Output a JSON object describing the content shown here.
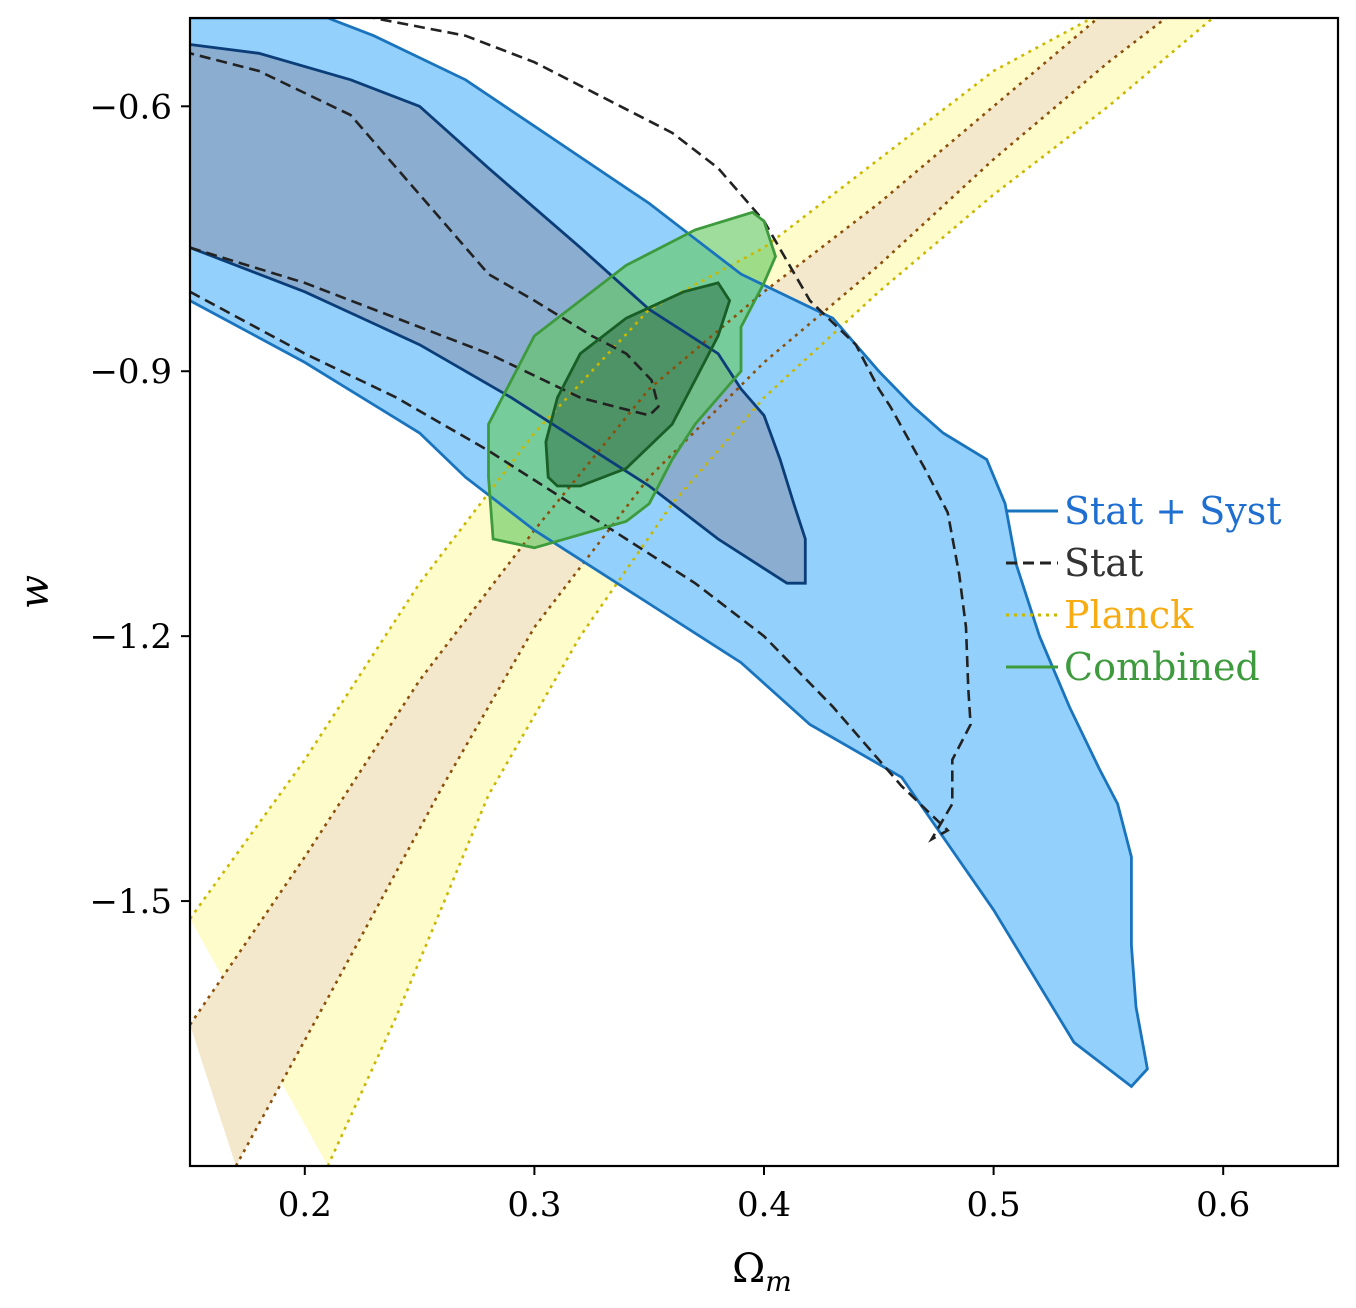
{
  "chart_data": {
    "type": "contour",
    "xlabel": "Ω",
    "xlabel_sub": "m",
    "ylabel": "w",
    "xlim": [
      0.15,
      0.65
    ],
    "ylim": [
      -1.8,
      -0.5
    ],
    "xticks": [
      0.2,
      0.3,
      0.4,
      0.5,
      0.6
    ],
    "xtick_labels": [
      "0.2",
      "0.3",
      "0.4",
      "0.5",
      "0.6"
    ],
    "yticks": [
      -0.6,
      -0.9,
      -1.2,
      -1.5
    ],
    "ytick_labels": [
      "−0.6",
      "−0.9",
      "−1.2",
      "−1.5"
    ],
    "legend_position": "right",
    "series": [
      {
        "name": "Stat + Syst",
        "label_color": "#1f6fd1",
        "line_color": "#1a74bd",
        "line_style": "solid",
        "fill_outer": "#93d1fc",
        "fill_inner": "#8aadd0",
        "inner_line_color": "#0b3e78",
        "contours": [
          {
            "level": "2sigma",
            "points": [
              [
                0.15,
                -0.82
              ],
              [
                0.2,
                -0.89
              ],
              [
                0.25,
                -0.97
              ],
              [
                0.27,
                -1.02
              ],
              [
                0.3,
                -1.08
              ],
              [
                0.33,
                -1.13
              ],
              [
                0.36,
                -1.18
              ],
              [
                0.39,
                -1.23
              ],
              [
                0.42,
                -1.3
              ],
              [
                0.46,
                -1.36
              ],
              [
                0.5,
                -1.51
              ],
              [
                0.535,
                -1.66
              ],
              [
                0.56,
                -1.71
              ],
              [
                0.567,
                -1.69
              ],
              [
                0.562,
                -1.62
              ],
              [
                0.56,
                -1.55
              ],
              [
                0.56,
                -1.45
              ],
              [
                0.554,
                -1.39
              ],
              [
                0.546,
                -1.35
              ],
              [
                0.533,
                -1.28
              ],
              [
                0.52,
                -1.2
              ],
              [
                0.51,
                -1.12
              ],
              [
                0.505,
                -1.05
              ],
              [
                0.497,
                -1.0
              ],
              [
                0.478,
                -0.97
              ],
              [
                0.465,
                -0.94
              ],
              [
                0.45,
                -0.9
              ],
              [
                0.43,
                -0.84
              ],
              [
                0.39,
                -0.79
              ],
              [
                0.37,
                -0.75
              ],
              [
                0.35,
                -0.71
              ],
              [
                0.31,
                -0.64
              ],
              [
                0.27,
                -0.57
              ],
              [
                0.23,
                -0.52
              ],
              [
                0.21,
                -0.5
              ],
              [
                0.15,
                -0.5
              ]
            ]
          },
          {
            "level": "1sigma",
            "points": [
              [
                0.15,
                -0.76
              ],
              [
                0.2,
                -0.81
              ],
              [
                0.25,
                -0.87
              ],
              [
                0.29,
                -0.93
              ],
              [
                0.32,
                -0.98
              ],
              [
                0.35,
                -1.03
              ],
              [
                0.38,
                -1.09
              ],
              [
                0.41,
                -1.14
              ],
              [
                0.418,
                -1.14
              ],
              [
                0.418,
                -1.09
              ],
              [
                0.413,
                -1.05
              ],
              [
                0.407,
                -1.0
              ],
              [
                0.4,
                -0.95
              ],
              [
                0.39,
                -0.92
              ],
              [
                0.38,
                -0.88
              ],
              [
                0.35,
                -0.83
              ],
              [
                0.32,
                -0.76
              ],
              [
                0.28,
                -0.67
              ],
              [
                0.25,
                -0.6
              ],
              [
                0.22,
                -0.57
              ],
              [
                0.18,
                -0.54
              ],
              [
                0.15,
                -0.53
              ]
            ]
          }
        ]
      },
      {
        "name": "Stat",
        "label_color": "#333333",
        "line_color": "#222222",
        "line_style": "dashed",
        "contours": [
          {
            "level": "2sigma",
            "points": [
              [
                0.15,
                -0.81
              ],
              [
                0.2,
                -0.88
              ],
              [
                0.24,
                -0.93
              ],
              [
                0.28,
                -0.99
              ],
              [
                0.31,
                -1.04
              ],
              [
                0.34,
                -1.09
              ],
              [
                0.37,
                -1.14
              ],
              [
                0.4,
                -1.2
              ],
              [
                0.43,
                -1.28
              ],
              [
                0.46,
                -1.37
              ],
              [
                0.48,
                -1.42
              ],
              [
                0.473,
                -1.43
              ],
              [
                0.482,
                -1.39
              ],
              [
                0.482,
                -1.34
              ],
              [
                0.49,
                -1.3
              ],
              [
                0.489,
                -1.26
              ],
              [
                0.488,
                -1.19
              ],
              [
                0.485,
                -1.13
              ],
              [
                0.48,
                -1.06
              ],
              [
                0.47,
                -1.01
              ],
              [
                0.455,
                -0.94
              ],
              [
                0.45,
                -0.92
              ],
              [
                0.44,
                -0.87
              ],
              [
                0.42,
                -0.82
              ],
              [
                0.4,
                -0.73
              ],
              [
                0.38,
                -0.67
              ],
              [
                0.36,
                -0.63
              ],
              [
                0.33,
                -0.59
              ],
              [
                0.3,
                -0.55
              ],
              [
                0.27,
                -0.52
              ],
              [
                0.23,
                -0.5
              ]
            ]
          },
          {
            "level": "1sigma",
            "points": [
              [
                0.15,
                -0.76
              ],
              [
                0.2,
                -0.8
              ],
              [
                0.24,
                -0.84
              ],
              [
                0.28,
                -0.88
              ],
              [
                0.32,
                -0.93
              ],
              [
                0.35,
                -0.95
              ],
              [
                0.354,
                -0.94
              ],
              [
                0.351,
                -0.91
              ],
              [
                0.34,
                -0.88
              ],
              [
                0.325,
                -0.86
              ],
              [
                0.3,
                -0.82
              ],
              [
                0.28,
                -0.79
              ],
              [
                0.26,
                -0.73
              ],
              [
                0.24,
                -0.67
              ],
              [
                0.22,
                -0.61
              ],
              [
                0.18,
                -0.56
              ],
              [
                0.15,
                -0.54
              ]
            ]
          }
        ]
      },
      {
        "name": "Planck",
        "label_color": "#f7ac14",
        "line_color": "#c9b800",
        "inner_line_color": "#8b4f0a",
        "line_style": "dotted",
        "fill_outer": "#fffccb",
        "fill_inner": "#f3e8cb",
        "bands": [
          {
            "level": "outer_upper",
            "points": [
              [
                0.15,
                -1.52
              ],
              [
                0.2,
                -1.34
              ],
              [
                0.25,
                -1.14
              ],
              [
                0.3,
                -0.97
              ],
              [
                0.35,
                -0.83
              ],
              [
                0.4,
                -0.76
              ],
              [
                0.45,
                -0.66
              ],
              [
                0.5,
                -0.56
              ],
              [
                0.55,
                -0.49
              ]
            ]
          },
          {
            "level": "inner_upper",
            "points": [
              [
                0.15,
                -1.64
              ],
              [
                0.2,
                -1.45
              ],
              [
                0.25,
                -1.25
              ],
              [
                0.3,
                -1.08
              ],
              [
                0.35,
                -0.92
              ],
              [
                0.4,
                -0.81
              ],
              [
                0.45,
                -0.71
              ],
              [
                0.5,
                -0.6
              ],
              [
                0.55,
                -0.49
              ]
            ]
          },
          {
            "level": "inner_lower",
            "points": [
              [
                0.17,
                -1.8
              ],
              [
                0.21,
                -1.61
              ],
              [
                0.26,
                -1.37
              ],
              [
                0.3,
                -1.19
              ],
              [
                0.35,
                -1.02
              ],
              [
                0.4,
                -0.89
              ],
              [
                0.45,
                -0.78
              ],
              [
                0.5,
                -0.66
              ],
              [
                0.55,
                -0.55
              ],
              [
                0.58,
                -0.49
              ]
            ]
          },
          {
            "level": "outer_lower",
            "points": [
              [
                0.21,
                -1.8
              ],
              [
                0.24,
                -1.63
              ],
              [
                0.28,
                -1.38
              ],
              [
                0.32,
                -1.2
              ],
              [
                0.36,
                -1.05
              ],
              [
                0.4,
                -0.93
              ],
              [
                0.45,
                -0.81
              ],
              [
                0.5,
                -0.7
              ],
              [
                0.55,
                -0.6
              ],
              [
                0.6,
                -0.49
              ]
            ]
          }
        ]
      },
      {
        "name": "Combined",
        "label_color": "#3d9b3d",
        "line_color": "#3d9b3d",
        "inner_line_color": "#185e26",
        "line_style": "solid",
        "fill_outer": "rgba(100,200,95,0.62)",
        "fill_inner": "rgba(35,95,55,0.45)",
        "contours": [
          {
            "level": "2sigma",
            "points": [
              [
                0.3,
                -1.1
              ],
              [
                0.34,
                -1.07
              ],
              [
                0.35,
                -1.05
              ],
              [
                0.36,
                -1.0
              ],
              [
                0.37,
                -0.96
              ],
              [
                0.39,
                -0.9
              ],
              [
                0.39,
                -0.85
              ],
              [
                0.4,
                -0.8
              ],
              [
                0.405,
                -0.77
              ],
              [
                0.4,
                -0.73
              ],
              [
                0.395,
                -0.72
              ],
              [
                0.37,
                -0.74
              ],
              [
                0.34,
                -0.78
              ],
              [
                0.3,
                -0.86
              ],
              [
                0.28,
                -0.96
              ],
              [
                0.28,
                -1.02
              ],
              [
                0.282,
                -1.09
              ]
            ]
          },
          {
            "level": "1sigma",
            "points": [
              [
                0.31,
                -1.03
              ],
              [
                0.32,
                -1.03
              ],
              [
                0.34,
                -1.01
              ],
              [
                0.36,
                -0.96
              ],
              [
                0.37,
                -0.91
              ],
              [
                0.38,
                -0.86
              ],
              [
                0.385,
                -0.82
              ],
              [
                0.38,
                -0.8
              ],
              [
                0.365,
                -0.81
              ],
              [
                0.34,
                -0.84
              ],
              [
                0.32,
                -0.88
              ],
              [
                0.31,
                -0.93
              ],
              [
                0.305,
                -0.98
              ],
              [
                0.306,
                -1.02
              ]
            ]
          }
        ]
      }
    ]
  }
}
